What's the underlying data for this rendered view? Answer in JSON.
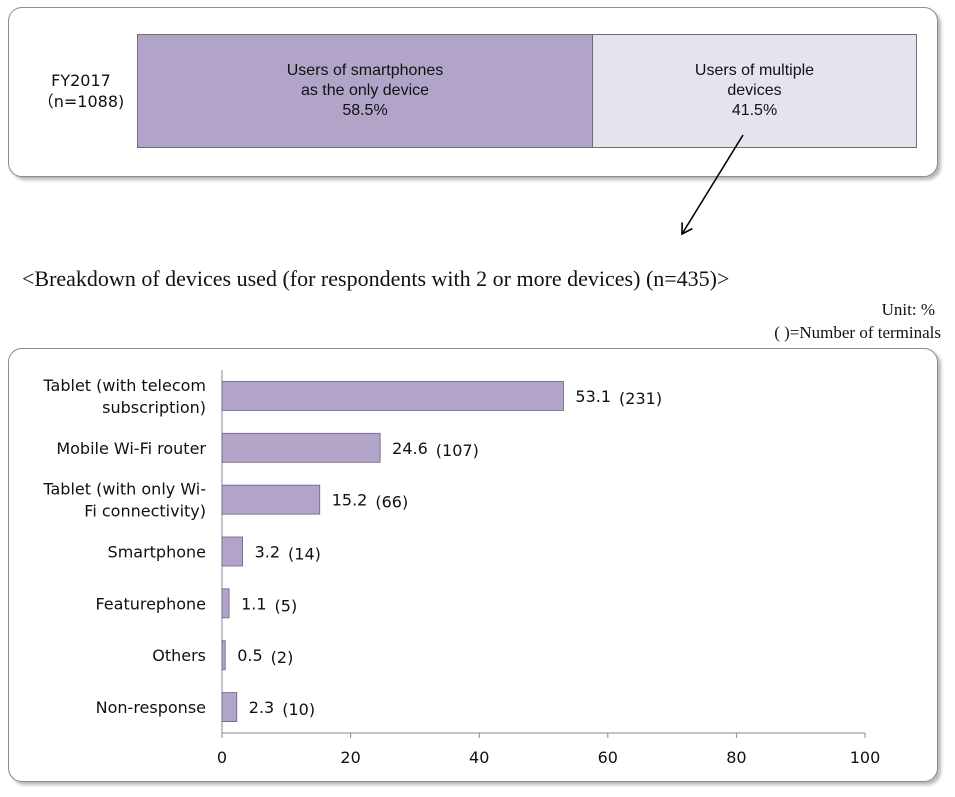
{
  "top": {
    "period": "FY2017",
    "n": "（n=1088)",
    "segments": [
      {
        "lines": [
          "Users of smartphones",
          "as the only device",
          "58.5%"
        ],
        "value": 58.5,
        "color": "#b2a3c9"
      },
      {
        "lines": [
          "Users of multiple",
          "devices",
          "41.5%"
        ],
        "value": 41.5,
        "color": "#e6e2ee"
      }
    ]
  },
  "breakdown_title": "<Breakdown of devices used (for respondents with 2 or more devices) (n=435)>",
  "unit_note": "Unit: %",
  "terminals_note": "(     )=Number of terminals",
  "chart_data": {
    "type": "bar",
    "orientation": "horizontal",
    "categories": [
      [
        "Tablet (with telecom",
        "subscription)"
      ],
      [
        "Mobile Wi-Fi router"
      ],
      [
        "Tablet (with only Wi-",
        "Fi connectivity)"
      ],
      [
        "Smartphone"
      ],
      [
        "Featurephone"
      ],
      [
        "Others"
      ],
      [
        "Non-response"
      ]
    ],
    "values": [
      53.1,
      24.6,
      15.2,
      3.2,
      1.1,
      0.5,
      2.3
    ],
    "value_labels": [
      "53.1",
      "24.6",
      "15.2",
      "3.2",
      "1.1",
      "0.5",
      "2.3"
    ],
    "terminal_counts": [
      "(231)",
      "(107)",
      "(66)",
      "(14)",
      "(5)",
      "(2)",
      "(10)"
    ],
    "xlim": [
      0,
      100
    ],
    "xticks": [
      0,
      20,
      40,
      60,
      80,
      100
    ],
    "bar_color": "#b2a3c9",
    "grid": false,
    "legend": "none"
  }
}
